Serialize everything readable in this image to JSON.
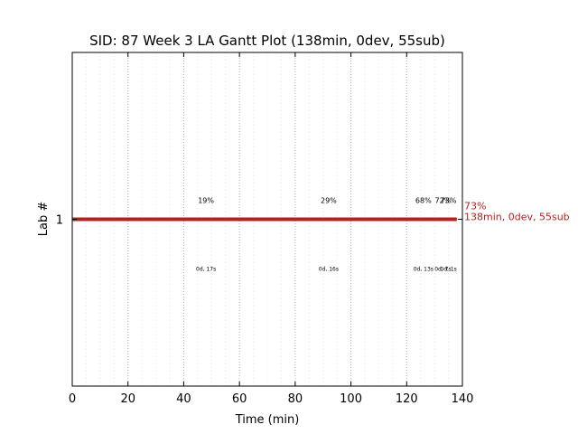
{
  "chart_data": {
    "type": "gantt",
    "title": "SID: 87 Week 3 LA Gantt Plot (138min, 0dev, 55sub)",
    "xlabel": "Time (min)",
    "ylabel": "Lab #",
    "xlim": [
      0,
      140
    ],
    "xticks": [
      0,
      20,
      40,
      60,
      80,
      100,
      120,
      140
    ],
    "yticks": [
      1
    ],
    "grid": "vertical dotted",
    "bar_color": "#b22222",
    "bars": [
      {
        "lab": 1,
        "start": 0,
        "end": 138,
        "end_label_pct": "73%",
        "end_label_summary": "138min, 0dev, 55sub"
      }
    ],
    "milestones": [
      {
        "x": 48,
        "pct": "19%",
        "sub": "0d, 17s"
      },
      {
        "x": 92,
        "pct": "29%",
        "sub": "0d, 16s"
      },
      {
        "x": 126,
        "pct": "68%",
        "sub": "0d, 13s"
      },
      {
        "x": 133,
        "pct": "72%",
        "sub": "0d, 7s"
      },
      {
        "x": 135,
        "pct": "73%",
        "sub": "0d, 1s"
      }
    ]
  }
}
